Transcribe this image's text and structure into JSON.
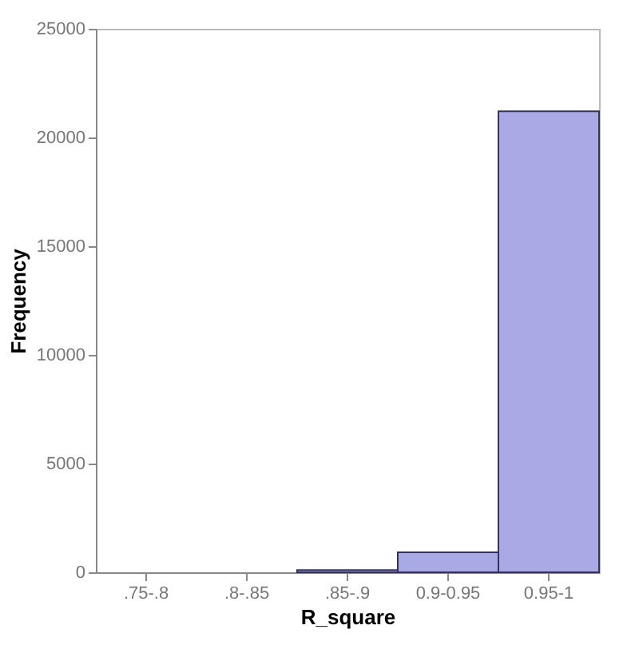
{
  "chart_data": {
    "type": "bar",
    "xlabel": "R_square",
    "ylabel": "Frequency",
    "categories": [
      ".75-.8",
      ".8-.85",
      ".85-.9",
      "0.9-0.95",
      "0.95-1"
    ],
    "values": [
      0,
      0,
      100,
      920,
      21200
    ],
    "color": "#a9a9e6",
    "ylim": [
      0,
      25000
    ],
    "yticks": [
      0,
      5000,
      10000,
      15000,
      20000,
      25000
    ],
    "grid": false
  }
}
